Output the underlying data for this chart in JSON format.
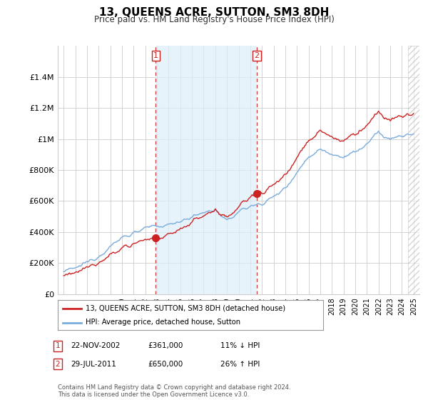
{
  "title": "13, QUEENS ACRE, SUTTON, SM3 8DH",
  "subtitle": "Price paid vs. HM Land Registry's House Price Index (HPI)",
  "legend_line1": "13, QUEENS ACRE, SUTTON, SM3 8DH (detached house)",
  "legend_line2": "HPI: Average price, detached house, Sutton",
  "table_rows": [
    {
      "num": "1",
      "date": "22-NOV-2002",
      "price": "£361,000",
      "hpi": "11% ↓ HPI"
    },
    {
      "num": "2",
      "date": "29-JUL-2011",
      "price": "£650,000",
      "hpi": "26% ↑ HPI"
    }
  ],
  "footer": "Contains HM Land Registry data © Crown copyright and database right 2024.\nThis data is licensed under the Open Government Licence v3.0.",
  "sale1_year": 2002.9,
  "sale1_price": 361000,
  "sale2_year": 2011.57,
  "sale2_price": 650000,
  "ylim": [
    0,
    1600000
  ],
  "yticks": [
    0,
    200000,
    400000,
    600000,
    800000,
    1000000,
    1200000,
    1400000
  ],
  "ytick_labels": [
    "£0",
    "£200K",
    "£400K",
    "£600K",
    "£800K",
    "£1M",
    "£1.2M",
    "£1.4M"
  ],
  "hpi_color": "#7aacdc",
  "price_color": "#cc2222",
  "dashed_vline_color": "#cc2222",
  "bg_color": "#f0f0f0",
  "plot_bg": "#ffffff",
  "shade_between_color": "#ddeeff",
  "grid_color": "#cccccc"
}
